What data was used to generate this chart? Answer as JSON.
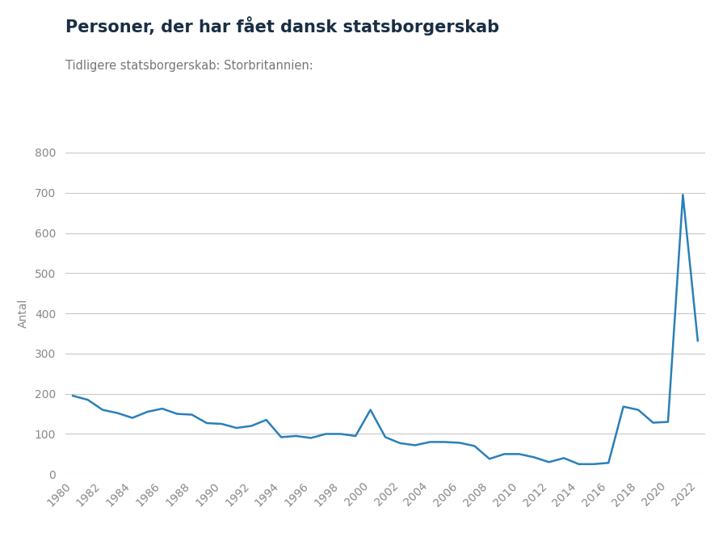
{
  "title": "Personer, der har fået dansk statsborgerskab",
  "subtitle": "Tidligere statsborgerskab: Storbritannien:",
  "ylabel": "Antal",
  "years": [
    1980,
    1981,
    1982,
    1983,
    1984,
    1985,
    1986,
    1987,
    1988,
    1989,
    1990,
    1991,
    1992,
    1993,
    1994,
    1995,
    1996,
    1997,
    1998,
    1999,
    2000,
    2001,
    2002,
    2003,
    2004,
    2005,
    2006,
    2007,
    2008,
    2009,
    2010,
    2011,
    2012,
    2013,
    2014,
    2015,
    2016,
    2017,
    2018,
    2019,
    2020,
    2021,
    2022
  ],
  "values": [
    195,
    185,
    160,
    152,
    140,
    155,
    163,
    150,
    148,
    127,
    125,
    115,
    120,
    135,
    92,
    95,
    90,
    100,
    100,
    95,
    160,
    92,
    77,
    72,
    80,
    80,
    78,
    70,
    38,
    50,
    50,
    42,
    30,
    40,
    25,
    25,
    28,
    168,
    160,
    128,
    130,
    695,
    332
  ],
  "line_color": "#2980b9",
  "background_color": "#ffffff",
  "grid_color": "#c8c8c8",
  "ylim": [
    0,
    800
  ],
  "yticks": [
    0,
    100,
    200,
    300,
    400,
    500,
    600,
    700,
    800
  ],
  "title_fontsize": 15,
  "subtitle_fontsize": 10.5,
  "ylabel_fontsize": 10,
  "tick_fontsize": 10,
  "title_color": "#1a2e44",
  "subtitle_color": "#777777",
  "tick_color": "#888888",
  "ylabel_color": "#888888"
}
